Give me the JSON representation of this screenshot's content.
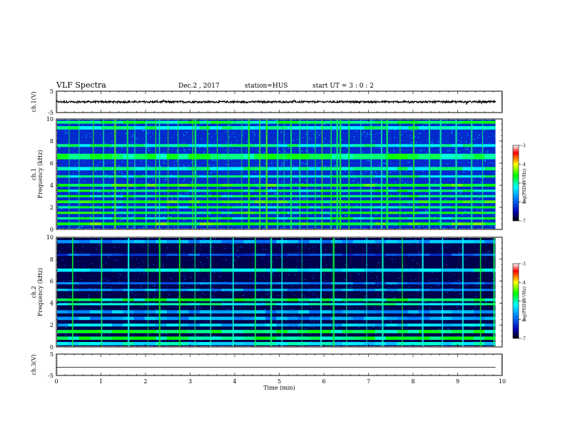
{
  "header": {
    "title": "VLF Spectra",
    "date": "Dec.2 , 2017",
    "station": "station=HUS",
    "start": "start UT =  3 : 0 : 2"
  },
  "colors": {
    "background": "#000000",
    "low": "#0000b4",
    "mid": "#00ffff",
    "high": "#ffff00",
    "max": "#ff0000",
    "trace": "#000000"
  },
  "chart_data": [
    {
      "id": "ch1-waveform",
      "type": "line",
      "ylabel": "ch.1(V)",
      "ylim": [
        -5,
        5
      ],
      "yticks": [
        "5",
        "-5"
      ],
      "xlim": [
        0,
        10
      ],
      "level": 0,
      "noise_amplitude": 0.45
    },
    {
      "id": "ch1-spectrogram",
      "type": "heatmap",
      "ylabel": "ch.1\nFrequency (kHz)",
      "ylim": [
        0,
        10
      ],
      "yticks": [
        "0",
        "2",
        "4",
        "6",
        "8",
        "10"
      ],
      "xlim": [
        0,
        9.85
      ],
      "colorbar": {
        "label": "log(PSD)(V²/Hz)",
        "range": [
          -7,
          -3
        ],
        "ticks": [
          "-3",
          "-4",
          "-5",
          "-6",
          "-7"
        ]
      },
      "background_level": 0.18,
      "bands": [
        {
          "f": 0.5,
          "w": 0.25,
          "level": 0.62
        },
        {
          "f": 1.0,
          "w": 0.2,
          "level": 0.55
        },
        {
          "f": 1.5,
          "w": 0.2,
          "level": 0.58
        },
        {
          "f": 2.0,
          "w": 0.2,
          "level": 0.55
        },
        {
          "f": 2.5,
          "w": 0.25,
          "level": 0.6
        },
        {
          "f": 3.0,
          "w": 0.2,
          "level": 0.55
        },
        {
          "f": 3.5,
          "w": 0.2,
          "level": 0.55
        },
        {
          "f": 4.0,
          "w": 0.25,
          "level": 0.6
        },
        {
          "f": 4.8,
          "w": 0.2,
          "level": 0.5
        },
        {
          "f": 5.5,
          "w": 0.3,
          "level": 0.5
        },
        {
          "f": 6.6,
          "w": 0.5,
          "level": 0.55
        },
        {
          "f": 7.6,
          "w": 0.25,
          "level": 0.5
        },
        {
          "f": 9.2,
          "w": 0.3,
          "level": 0.5
        },
        {
          "f": 9.7,
          "w": 0.25,
          "level": 0.55
        }
      ],
      "sferics": [
        0.28,
        0.5,
        0.82,
        1.05,
        1.3,
        1.58,
        1.75,
        2.0,
        2.22,
        2.3,
        2.5,
        2.72,
        3.05,
        3.1,
        3.38,
        3.6,
        3.85,
        4.15,
        4.3,
        4.55,
        4.7,
        4.95,
        5.1,
        5.25,
        5.45,
        5.62,
        5.8,
        5.95,
        6.15,
        6.28,
        6.35,
        6.55,
        6.82,
        7.05,
        7.28,
        7.4,
        7.7,
        8.0,
        8.35,
        8.6,
        8.95,
        9.3,
        9.55
      ]
    },
    {
      "id": "ch2-spectrogram",
      "type": "heatmap",
      "ylabel": "ch.2\nFrequency (kHz)",
      "ylim": [
        0,
        10
      ],
      "yticks": [
        "0",
        "2",
        "4",
        "6",
        "8",
        "10"
      ],
      "xlim": [
        0,
        9.85
      ],
      "colorbar": {
        "label": "log(PSD)(V²/Hz)",
        "range": [
          -7,
          -3
        ],
        "ticks": [
          "-3",
          "-4",
          "-5",
          "-6",
          "-7"
        ]
      },
      "background_level": 0.05,
      "bands": [
        {
          "f": 0.3,
          "w": 0.3,
          "level": 0.45
        },
        {
          "f": 0.8,
          "w": 0.3,
          "level": 0.55
        },
        {
          "f": 1.4,
          "w": 0.3,
          "level": 0.55
        },
        {
          "f": 2.0,
          "w": 0.25,
          "level": 0.4
        },
        {
          "f": 2.6,
          "w": 0.3,
          "level": 0.35
        },
        {
          "f": 3.2,
          "w": 0.3,
          "level": 0.35
        },
        {
          "f": 3.9,
          "w": 0.2,
          "level": 0.5
        },
        {
          "f": 4.3,
          "w": 0.25,
          "level": 0.55
        },
        {
          "f": 5.2,
          "w": 0.2,
          "level": 0.35
        },
        {
          "f": 5.8,
          "w": 0.2,
          "level": 0.3
        },
        {
          "f": 7.0,
          "w": 0.3,
          "level": 0.45
        },
        {
          "f": 8.4,
          "w": 0.2,
          "level": 0.25
        },
        {
          "f": 9.6,
          "w": 0.3,
          "level": 0.35
        }
      ],
      "sferics": [
        0.35,
        1.0,
        1.6,
        2.05,
        2.3,
        2.75,
        3.1,
        3.45,
        3.95,
        4.45,
        4.8,
        5.05,
        5.5,
        5.92,
        6.2,
        6.5,
        6.95,
        7.3,
        7.75,
        8.2,
        8.65,
        9.1,
        9.5,
        9.8
      ]
    },
    {
      "id": "ch3-waveform",
      "type": "line",
      "ylabel": "ch.3(V)",
      "ylim": [
        -5,
        5
      ],
      "yticks": [
        "5",
        "-5"
      ],
      "xlim": [
        0,
        10
      ],
      "level": -1.2,
      "noise_amplitude": 0
    }
  ],
  "xaxis": {
    "label": "Time (min)",
    "range": [
      0,
      10
    ],
    "ticks": [
      "0",
      "1",
      "2",
      "3",
      "4",
      "5",
      "6",
      "7",
      "8",
      "9",
      "10"
    ]
  }
}
